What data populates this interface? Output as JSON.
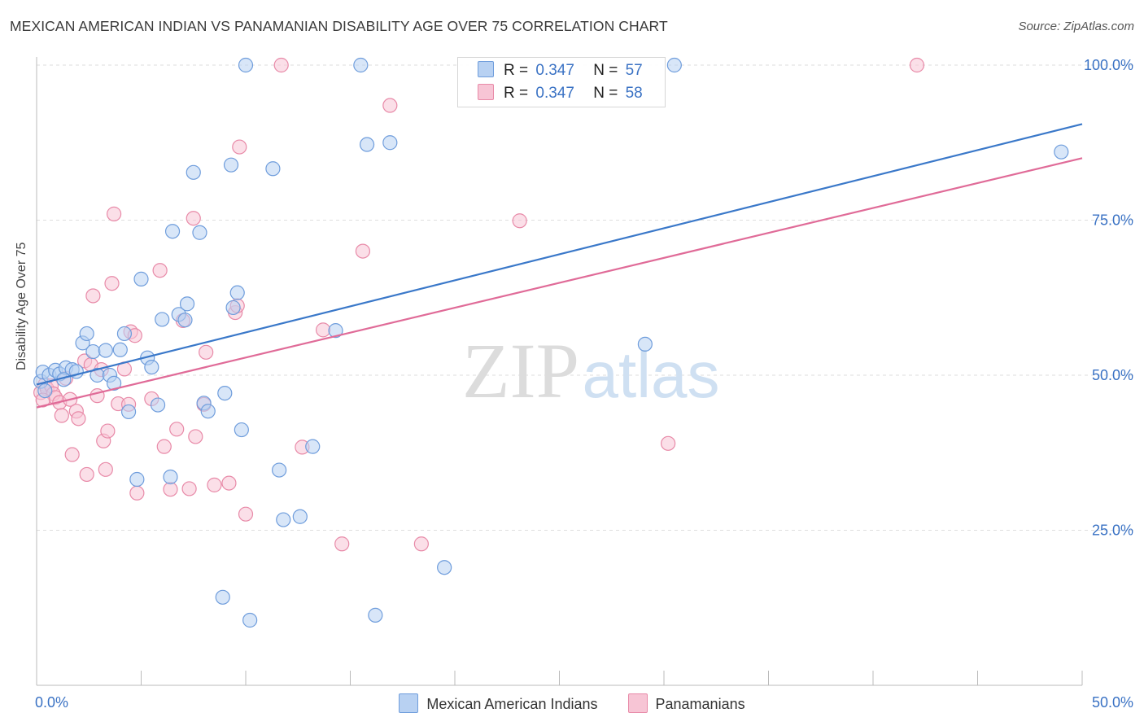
{
  "title": "MEXICAN AMERICAN INDIAN VS PANAMANIAN DISABILITY AGE OVER 75 CORRELATION CHART",
  "source": "Source: ZipAtlas.com",
  "watermark": {
    "zip": "ZIP",
    "atlas": "atlas"
  },
  "legend": {
    "rows": [
      {
        "r_label": "R =",
        "r_value": "0.347",
        "n_label": "N =",
        "n_value": "57",
        "fill": "#b8d1f2",
        "stroke": "#6f9ddc"
      },
      {
        "r_label": "R =",
        "r_value": "0.347",
        "n_label": "N =",
        "n_value": "58",
        "fill": "#f7c5d5",
        "stroke": "#e88aa8"
      }
    ]
  },
  "bottom_legend": [
    {
      "label": "Mexican American Indians",
      "fill": "#b8d1f2",
      "stroke": "#6f9ddc"
    },
    {
      "label": "Panamanians",
      "fill": "#f7c5d5",
      "stroke": "#e88aa8"
    }
  ],
  "chart_data": {
    "type": "scatter",
    "title": "MEXICAN AMERICAN INDIAN VS PANAMANIAN DISABILITY AGE OVER 75 CORRELATION CHART",
    "xlabel": "",
    "ylabel": "Disability Age Over 75",
    "xlim": [
      0,
      50
    ],
    "ylim": [
      0,
      105
    ],
    "x_tick_labels": [
      {
        "value": 0,
        "label": "0.0%"
      },
      {
        "value": 50,
        "label": "50.0%"
      }
    ],
    "y_tick_labels": [
      {
        "value": 25,
        "label": "25.0%"
      },
      {
        "value": 50,
        "label": "50.0%"
      },
      {
        "value": 75,
        "label": "75.0%"
      },
      {
        "value": 100,
        "label": "100.0%"
      }
    ],
    "grid": true,
    "legend_position": "top-center",
    "series": [
      {
        "name": "Mexican American Indians",
        "color": "#3a78c9",
        "fill": "#b8d1f2",
        "r": 0.347,
        "n": 57,
        "trend": [
          [
            0,
            48.5
          ],
          [
            50,
            90.5
          ]
        ],
        "points": [
          [
            0.2,
            49.0
          ],
          [
            0.3,
            50.5
          ],
          [
            0.6,
            50.0
          ],
          [
            0.9,
            50.8
          ],
          [
            1.1,
            50.2
          ],
          [
            1.4,
            51.2
          ],
          [
            1.7,
            50.9
          ],
          [
            1.9,
            50.6
          ],
          [
            2.2,
            55.2
          ],
          [
            2.4,
            56.7
          ],
          [
            2.7,
            53.8
          ],
          [
            2.9,
            50.0
          ],
          [
            3.3,
            54.0
          ],
          [
            3.5,
            50.0
          ],
          [
            3.7,
            48.7
          ],
          [
            4.0,
            54.1
          ],
          [
            4.2,
            56.7
          ],
          [
            4.4,
            44.1
          ],
          [
            4.8,
            33.2
          ],
          [
            5.0,
            65.5
          ],
          [
            5.3,
            52.8
          ],
          [
            5.5,
            51.3
          ],
          [
            5.8,
            45.2
          ],
          [
            6.0,
            59.0
          ],
          [
            6.4,
            33.6
          ],
          [
            6.5,
            73.2
          ],
          [
            6.8,
            59.8
          ],
          [
            7.1,
            58.9
          ],
          [
            7.2,
            61.5
          ],
          [
            7.5,
            82.7
          ],
          [
            7.8,
            73.0
          ],
          [
            8.0,
            45.5
          ],
          [
            8.2,
            44.2
          ],
          [
            8.9,
            14.2
          ],
          [
            9.0,
            47.1
          ],
          [
            9.6,
            63.3
          ],
          [
            9.3,
            83.9
          ],
          [
            9.4,
            60.9
          ],
          [
            9.8,
            41.2
          ],
          [
            10.0,
            100.0
          ],
          [
            10.2,
            10.5
          ],
          [
            11.3,
            83.3
          ],
          [
            11.6,
            34.7
          ],
          [
            11.8,
            26.7
          ],
          [
            12.6,
            27.2
          ],
          [
            13.2,
            38.5
          ],
          [
            14.3,
            57.2
          ],
          [
            15.5,
            100.0
          ],
          [
            15.8,
            87.2
          ],
          [
            16.2,
            11.3
          ],
          [
            16.9,
            87.5
          ],
          [
            19.5,
            19.0
          ],
          [
            29.1,
            55.0
          ],
          [
            30.5,
            100.0
          ],
          [
            49.0,
            86.0
          ],
          [
            0.4,
            47.5
          ],
          [
            1.3,
            49.3
          ]
        ]
      },
      {
        "name": "Panamanians",
        "color": "#e06b98",
        "fill": "#f7c5d5",
        "r": 0.347,
        "n": 58,
        "trend": [
          [
            0,
            44.8
          ],
          [
            50,
            85.0
          ]
        ],
        "points": [
          [
            0.2,
            47.2
          ],
          [
            0.4,
            48.5
          ],
          [
            0.5,
            47.8
          ],
          [
            0.7,
            48.3
          ],
          [
            0.8,
            47.0
          ],
          [
            0.9,
            46.4
          ],
          [
            1.1,
            45.6
          ],
          [
            1.2,
            43.5
          ],
          [
            1.4,
            49.5
          ],
          [
            1.6,
            46.1
          ],
          [
            1.7,
            37.2
          ],
          [
            1.9,
            44.2
          ],
          [
            2.0,
            43.0
          ],
          [
            2.3,
            52.3
          ],
          [
            2.4,
            34.0
          ],
          [
            2.6,
            51.7
          ],
          [
            2.7,
            62.8
          ],
          [
            2.9,
            46.7
          ],
          [
            3.1,
            50.9
          ],
          [
            3.2,
            39.4
          ],
          [
            3.3,
            34.8
          ],
          [
            3.4,
            41.0
          ],
          [
            3.6,
            64.8
          ],
          [
            3.7,
            76.0
          ],
          [
            3.9,
            45.4
          ],
          [
            4.2,
            51.0
          ],
          [
            4.4,
            45.3
          ],
          [
            4.5,
            57.0
          ],
          [
            4.7,
            56.4
          ],
          [
            4.8,
            31.0
          ],
          [
            5.5,
            46.2
          ],
          [
            5.9,
            66.9
          ],
          [
            6.1,
            38.5
          ],
          [
            6.4,
            31.6
          ],
          [
            6.7,
            41.3
          ],
          [
            7.0,
            58.8
          ],
          [
            7.3,
            31.7
          ],
          [
            7.5,
            75.3
          ],
          [
            7.6,
            40.1
          ],
          [
            8.0,
            45.3
          ],
          [
            8.1,
            53.7
          ],
          [
            8.5,
            32.3
          ],
          [
            9.2,
            32.6
          ],
          [
            9.5,
            60.1
          ],
          [
            9.6,
            61.2
          ],
          [
            9.7,
            86.8
          ],
          [
            10.0,
            27.6
          ],
          [
            11.7,
            100.0
          ],
          [
            12.7,
            38.4
          ],
          [
            13.7,
            57.3
          ],
          [
            14.6,
            22.8
          ],
          [
            15.6,
            70.0
          ],
          [
            16.9,
            93.5
          ],
          [
            18.4,
            22.8
          ],
          [
            23.1,
            74.9
          ],
          [
            30.2,
            39.0
          ],
          [
            42.1,
            100.0
          ],
          [
            0.3,
            46.0
          ]
        ]
      }
    ]
  }
}
